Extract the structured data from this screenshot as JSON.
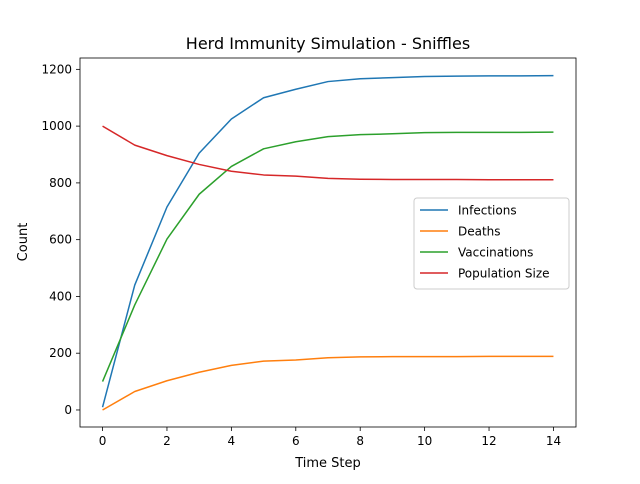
{
  "chart_data": {
    "type": "line",
    "title": "Herd Immunity Simulation - Sniffles",
    "xlabel": "Time Step",
    "ylabel": "Count",
    "xlim": [
      -0.7,
      14.7
    ],
    "ylim": [
      -60,
      1240
    ],
    "xticks": [
      0,
      2,
      4,
      6,
      8,
      10,
      12,
      14
    ],
    "yticks": [
      0,
      200,
      400,
      600,
      800,
      1000,
      1200
    ],
    "grid": false,
    "legend_position": "center-right",
    "x": [
      0,
      1,
      2,
      3,
      4,
      5,
      6,
      7,
      8,
      9,
      10,
      11,
      12,
      13,
      14
    ],
    "series": [
      {
        "name": "Infections",
        "color": "#1f77b4",
        "values": [
          10,
          440,
          715,
          905,
          1025,
          1100,
          1130,
          1157,
          1167,
          1171,
          1175,
          1176,
          1177,
          1177,
          1178
        ]
      },
      {
        "name": "Deaths",
        "color": "#ff7f0e",
        "values": [
          0,
          65,
          103,
          133,
          157,
          172,
          176,
          184,
          187,
          188,
          188,
          188,
          189,
          189,
          189
        ]
      },
      {
        "name": "Vaccinations",
        "color": "#2ca02c",
        "values": [
          100,
          370,
          602,
          760,
          858,
          920,
          945,
          963,
          970,
          973,
          977,
          978,
          978,
          978,
          979
        ]
      },
      {
        "name": "Population Size",
        "color": "#d62728",
        "values": [
          1000,
          933,
          896,
          865,
          841,
          828,
          824,
          816,
          813,
          812,
          812,
          812,
          811,
          811,
          811
        ]
      }
    ]
  }
}
